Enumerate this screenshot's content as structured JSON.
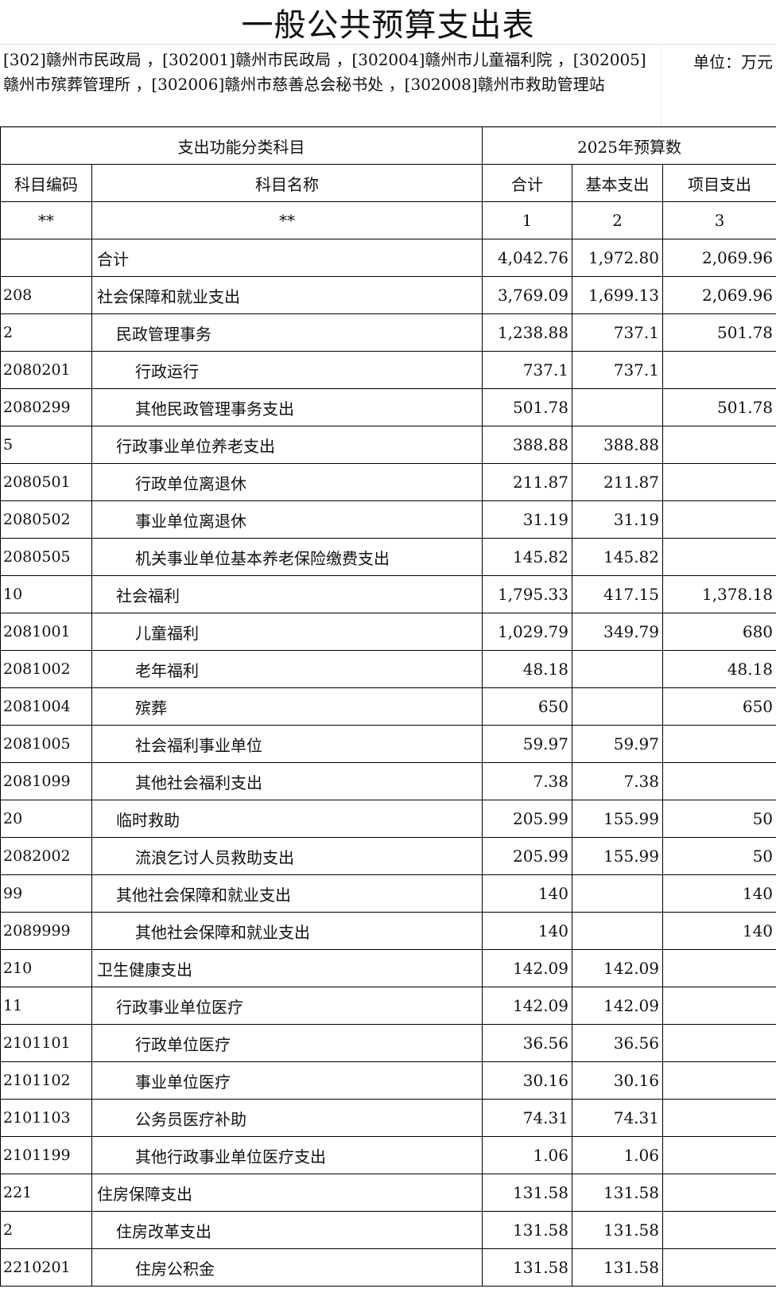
{
  "title": "一般公共预算支出表",
  "units_text": "[302]赣州市民政局 ，[302001]赣州市民政局 ，[302004]赣州市儿童福利院 ，[302005]赣州市殡葬管理所 ，[302006]赣州市慈善总会秘书处 ，[302008]赣州市救助管理站",
  "unit_label": "单位：万元",
  "header": {
    "group1": "支出功能分类科目",
    "group2": "2025年预算数",
    "code": "科目编码",
    "name": "科目名称",
    "total": "合计",
    "basic": "基本支出",
    "project": "项目支出",
    "idx_code": "**",
    "idx_name": "**",
    "idx_total": "1",
    "idx_basic": "2",
    "idx_project": "3"
  },
  "rows": [
    {
      "code": "",
      "name": "合计",
      "level": 1,
      "total": "4,042.76",
      "basic": "1,972.80",
      "project": "2,069.96"
    },
    {
      "code": "208",
      "name": "社会保障和就业支出",
      "level": 1,
      "total": "3,769.09",
      "basic": "1,699.13",
      "project": "2,069.96"
    },
    {
      "code": "2",
      "name": "民政管理事务",
      "level": 2,
      "total": "1,238.88",
      "basic": "737.1",
      "project": "501.78"
    },
    {
      "code": "2080201",
      "name": "行政运行",
      "level": 3,
      "total": "737.1",
      "basic": "737.1",
      "project": ""
    },
    {
      "code": "2080299",
      "name": "其他民政管理事务支出",
      "level": 3,
      "total": "501.78",
      "basic": "",
      "project": "501.78"
    },
    {
      "code": "5",
      "name": "行政事业单位养老支出",
      "level": 2,
      "total": "388.88",
      "basic": "388.88",
      "project": ""
    },
    {
      "code": "2080501",
      "name": "行政单位离退休",
      "level": 3,
      "total": "211.87",
      "basic": "211.87",
      "project": ""
    },
    {
      "code": "2080502",
      "name": "事业单位离退休",
      "level": 3,
      "total": "31.19",
      "basic": "31.19",
      "project": ""
    },
    {
      "code": "2080505",
      "name": "机关事业单位基本养老保险缴费支出",
      "level": 3,
      "total": "145.82",
      "basic": "145.82",
      "project": ""
    },
    {
      "code": "10",
      "name": "社会福利",
      "level": 2,
      "total": "1,795.33",
      "basic": "417.15",
      "project": "1,378.18"
    },
    {
      "code": "2081001",
      "name": "儿童福利",
      "level": 3,
      "total": "1,029.79",
      "basic": "349.79",
      "project": "680"
    },
    {
      "code": "2081002",
      "name": "老年福利",
      "level": 3,
      "total": "48.18",
      "basic": "",
      "project": "48.18"
    },
    {
      "code": "2081004",
      "name": "殡葬",
      "level": 3,
      "total": "650",
      "basic": "",
      "project": "650"
    },
    {
      "code": "2081005",
      "name": "社会福利事业单位",
      "level": 3,
      "total": "59.97",
      "basic": "59.97",
      "project": ""
    },
    {
      "code": "2081099",
      "name": "其他社会福利支出",
      "level": 3,
      "total": "7.38",
      "basic": "7.38",
      "project": ""
    },
    {
      "code": "20",
      "name": "临时救助",
      "level": 2,
      "total": "205.99",
      "basic": "155.99",
      "project": "50"
    },
    {
      "code": "2082002",
      "name": "流浪乞讨人员救助支出",
      "level": 3,
      "total": "205.99",
      "basic": "155.99",
      "project": "50"
    },
    {
      "code": "99",
      "name": "其他社会保障和就业支出",
      "level": 2,
      "total": "140",
      "basic": "",
      "project": "140"
    },
    {
      "code": "2089999",
      "name": "其他社会保障和就业支出",
      "level": 3,
      "total": "140",
      "basic": "",
      "project": "140"
    },
    {
      "code": "210",
      "name": "卫生健康支出",
      "level": 1,
      "total": "142.09",
      "basic": "142.09",
      "project": ""
    },
    {
      "code": "11",
      "name": "行政事业单位医疗",
      "level": 2,
      "total": "142.09",
      "basic": "142.09",
      "project": ""
    },
    {
      "code": "2101101",
      "name": "行政单位医疗",
      "level": 3,
      "total": "36.56",
      "basic": "36.56",
      "project": ""
    },
    {
      "code": "2101102",
      "name": "事业单位医疗",
      "level": 3,
      "total": "30.16",
      "basic": "30.16",
      "project": ""
    },
    {
      "code": "2101103",
      "name": "公务员医疗补助",
      "level": 3,
      "total": "74.31",
      "basic": "74.31",
      "project": ""
    },
    {
      "code": "2101199",
      "name": "其他行政事业单位医疗支出",
      "level": 3,
      "total": "1.06",
      "basic": "1.06",
      "project": ""
    },
    {
      "code": "221",
      "name": "住房保障支出",
      "level": 1,
      "total": "131.58",
      "basic": "131.58",
      "project": ""
    },
    {
      "code": "2",
      "name": "住房改革支出",
      "level": 2,
      "total": "131.58",
      "basic": "131.58",
      "project": ""
    },
    {
      "code": "2210201",
      "name": "住房公积金",
      "level": 3,
      "total": "131.58",
      "basic": "131.58",
      "project": ""
    }
  ]
}
